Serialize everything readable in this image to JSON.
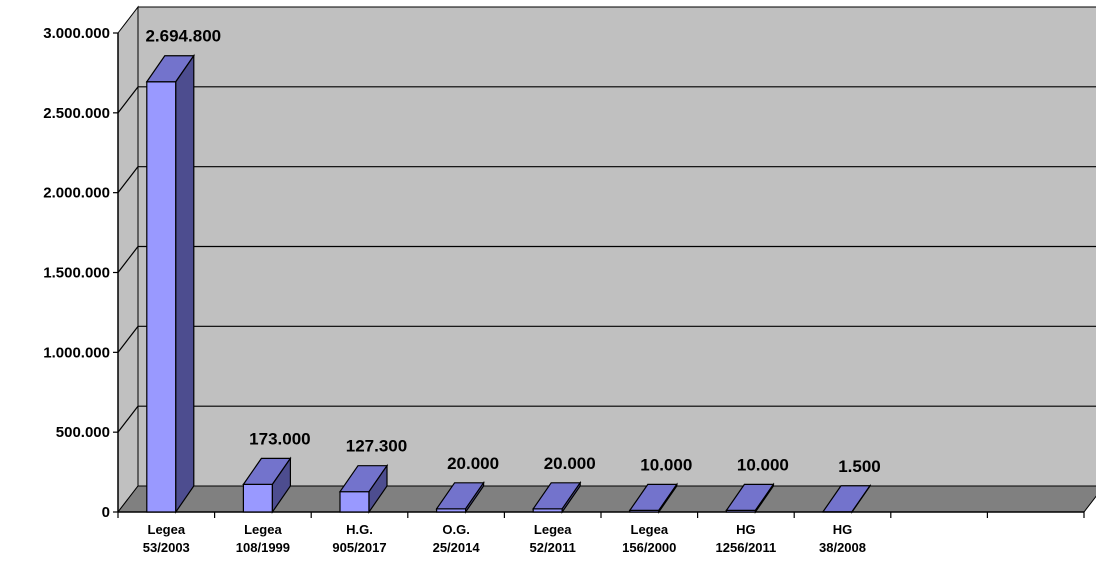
{
  "chart_data": {
    "type": "bar",
    "style": "3d-column",
    "categories": [
      [
        "Legea",
        "53/2003"
      ],
      [
        "Legea",
        "108/1999"
      ],
      [
        "H.G.",
        "905/2017"
      ],
      [
        "O.G.",
        "25/2014"
      ],
      [
        "Legea",
        "52/2011"
      ],
      [
        "Legea",
        "156/2000"
      ],
      [
        "HG",
        "1256/2011"
      ],
      [
        "HG",
        "38/2008"
      ],
      [
        "",
        ""
      ],
      [
        "",
        ""
      ]
    ],
    "values": [
      2694800,
      173000,
      127300,
      20000,
      20000,
      10000,
      10000,
      1500,
      null,
      null
    ],
    "data_labels": [
      "2.694.800",
      "173.000",
      "127.300",
      "20.000",
      "20.000",
      "10.000",
      "10.000",
      "1.500",
      "",
      ""
    ],
    "ylim": [
      0,
      3000000
    ],
    "yticks": [
      0,
      500000,
      1000000,
      1500000,
      2000000,
      2500000,
      3000000
    ],
    "ytick_labels": [
      "0",
      "500.000",
      "1.000.000",
      "1.500.000",
      "2.000.000",
      "2.500.000",
      "3.000.000"
    ],
    "title": "",
    "xlabel": "",
    "ylabel": "",
    "grid": true,
    "legend": "none",
    "colors": {
      "back_wall": "#c0c0c0",
      "floor": "#808080",
      "gridline": "#000000",
      "bar_front": "#9999ff",
      "bar_top": "#7373cc",
      "bar_side": "#4d4d8f",
      "outline": "#000000"
    }
  }
}
